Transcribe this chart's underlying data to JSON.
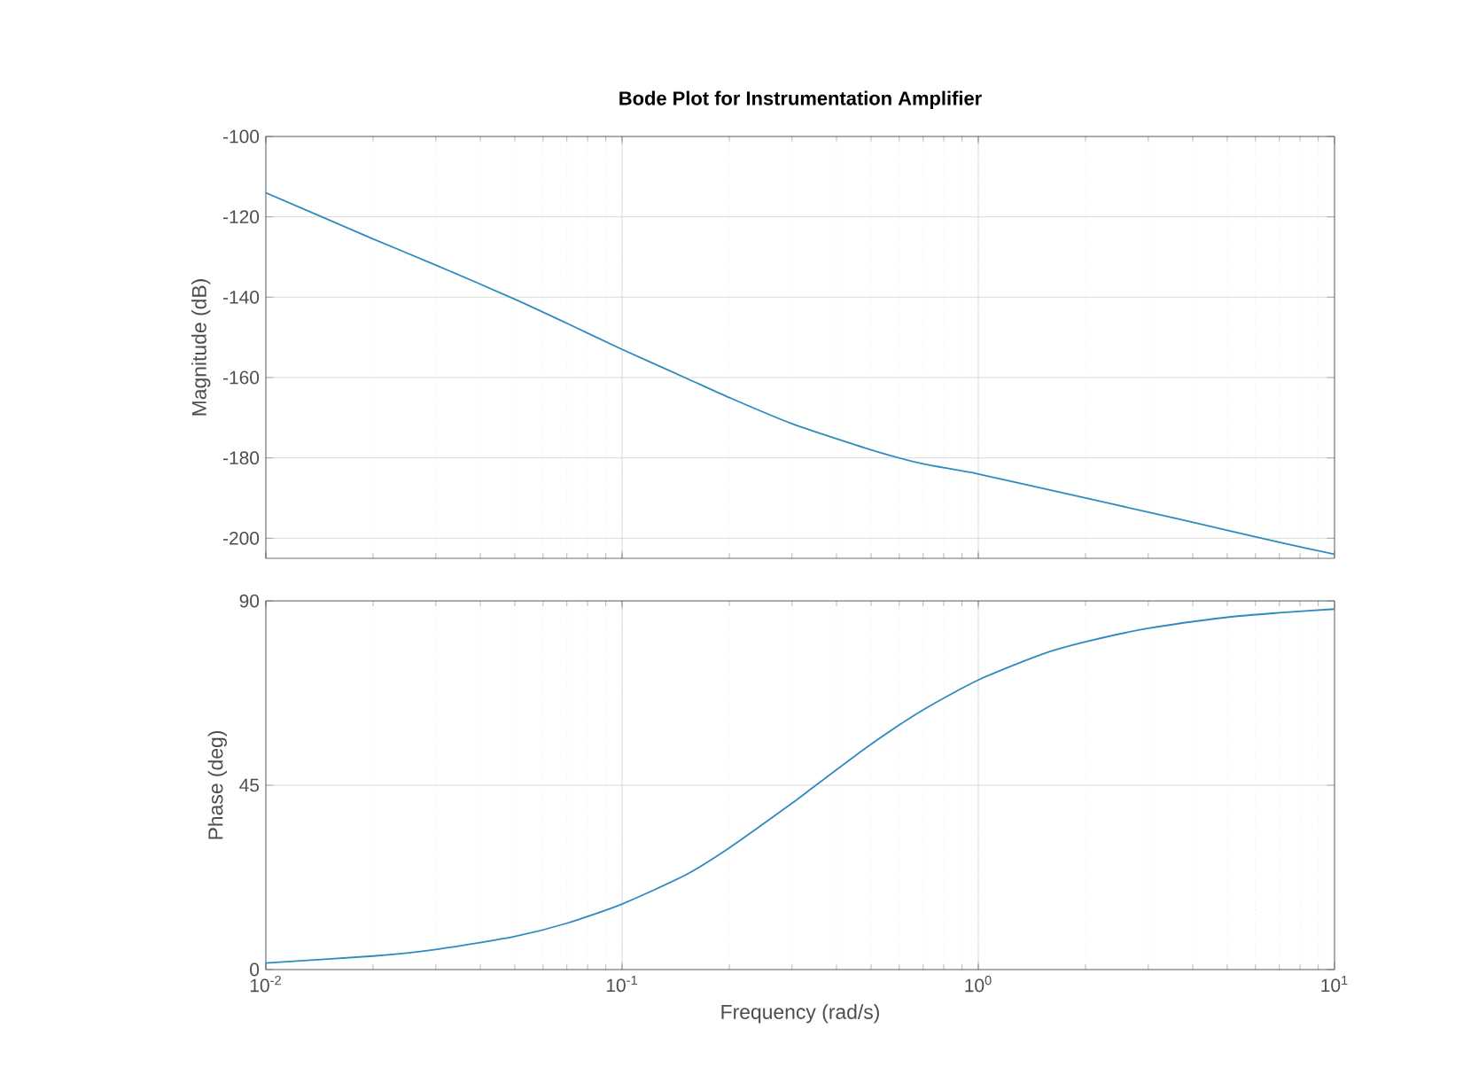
{
  "chart_data": [
    {
      "type": "line",
      "title": "Bode Plot for Instrumentation Amplifier",
      "ylabel": "Magnitude (dB)",
      "log": "x",
      "grid": true,
      "tick_labels": "y",
      "line_style": "solid",
      "xlim": [
        0.01,
        10
      ],
      "xticks": [
        {
          "value": 0.01,
          "label": null
        },
        {
          "value": 0.1,
          "label": null
        },
        {
          "value": 1,
          "label": null
        },
        {
          "value": 10,
          "label": null
        }
      ],
      "ylim": [
        -205,
        -100
      ],
      "yticks": [
        -200,
        -180,
        -160,
        -140,
        -120,
        -100
      ],
      "x": [
        0.01,
        0.02,
        0.03,
        0.05,
        0.07,
        0.1,
        0.15,
        0.2,
        0.3,
        0.5,
        0.7,
        1,
        2,
        3,
        5,
        7,
        10
      ],
      "series": [
        {
          "color": "#2e8bc0",
          "values": [
            -114,
            -125.5,
            -132,
            -140.5,
            -146.5,
            -153,
            -160,
            -165,
            -171.5,
            -178,
            -181.5,
            -184,
            -190,
            -193.5,
            -198,
            -201,
            -204
          ]
        }
      ]
    },
    {
      "type": "line",
      "xlabel": "Frequency  (rad/s)",
      "ylabel": "Phase (deg)",
      "log": "x",
      "grid": true,
      "line_style": "solid",
      "xlim": [
        0.01,
        10
      ],
      "xticks": [
        {
          "value": 0.01,
          "label": "10$^{-2}$"
        },
        {
          "value": 0.1,
          "label": "10$^{-1}$"
        },
        {
          "value": 1,
          "label": "10$^{0}$"
        },
        {
          "value": 10,
          "label": "10$^{1}$"
        }
      ],
      "ylim": [
        0,
        90
      ],
      "yticks": [
        0,
        45,
        90
      ],
      "x": [
        0.01,
        0.02,
        0.03,
        0.05,
        0.07,
        0.1,
        0.15,
        0.2,
        0.3,
        0.35,
        0.5,
        0.7,
        1,
        1.5,
        2,
        3,
        5,
        7,
        10
      ],
      "series": [
        {
          "color": "#2e8bc0",
          "values": [
            1.6,
            3.3,
            4.9,
            8.1,
            11.3,
            16,
            23,
            29.7,
            40.6,
            45,
            55,
            63.4,
            70.7,
            76.9,
            80,
            83.3,
            86,
            87.1,
            88
          ]
        }
      ]
    }
  ]
}
